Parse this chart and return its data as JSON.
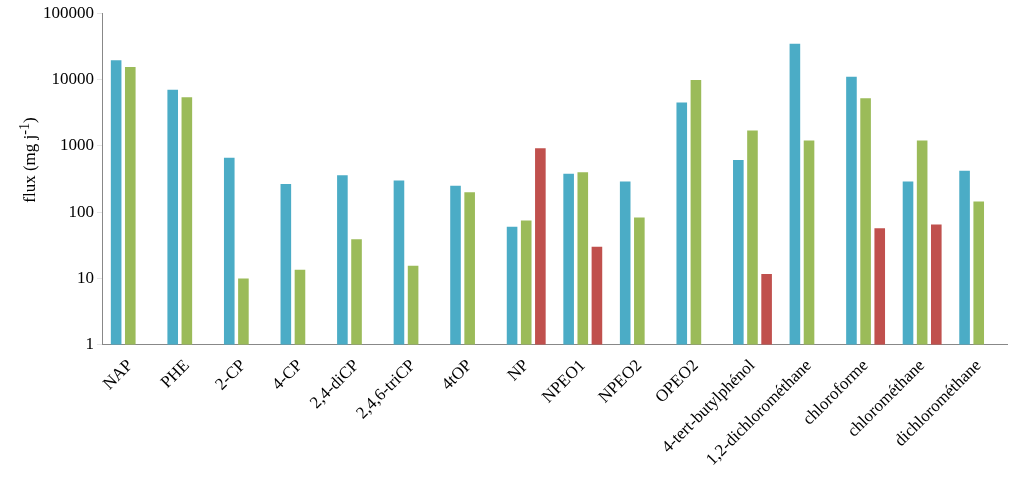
{
  "chart_data": {
    "type": "bar",
    "ylabel": "flux (mg j$^{-1}$)",
    "log": true,
    "grid": false,
    "legend": false,
    "categories": [
      "NAP",
      "PHE",
      "2-CP",
      "4-CP",
      "2,4-diCP",
      "2,4,6-triCP",
      "4tOP",
      "NP",
      "NPEO1",
      "NPEO2",
      "OPEO2",
      "4-tert-butylphénol",
      "1,2-dichlorométhane",
      "chloroforme",
      "chlorométhane",
      "dichlorométhane"
    ],
    "ylim": [
      1,
      100000
    ],
    "yticks": [
      1,
      10,
      100,
      1000,
      10000,
      100000
    ],
    "series": [
      {
        "color": "#4bacc6",
        "values": [
          19500,
          7000,
          660,
          265,
          360,
          300,
          250,
          60,
          380,
          290,
          4500,
          610,
          34500,
          11000,
          290,
          420
        ]
      },
      {
        "color": "#9bbb59",
        "values": [
          15500,
          5400,
          10,
          13.5,
          39,
          15.5,
          200,
          75,
          400,
          83,
          9800,
          1700,
          1200,
          5200,
          1200,
          145
        ]
      },
      {
        "color": "#c0504d",
        "values": [
          null,
          null,
          null,
          null,
          null,
          null,
          null,
          920,
          30,
          null,
          null,
          11.7,
          null,
          57,
          65,
          null
        ]
      }
    ]
  }
}
